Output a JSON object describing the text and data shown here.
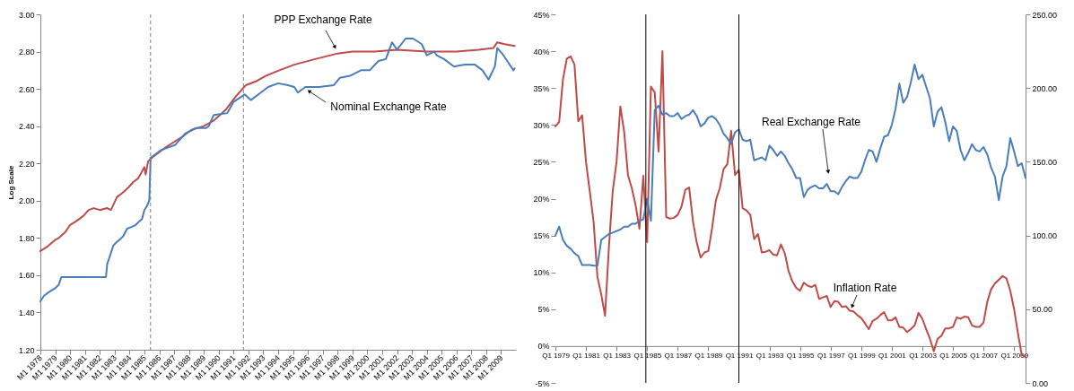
{
  "chart_data": [
    {
      "type": "line",
      "ylabel": "Log Scale",
      "xlim": [
        "1978-01",
        "2010-01"
      ],
      "xticks": [
        {
          "value": "1978-01",
          "label": "M1 1978"
        },
        {
          "value": "1979-01",
          "label": "M1 1979"
        },
        {
          "value": "1980-01",
          "label": "M1 1980"
        },
        {
          "value": "1981-01",
          "label": "M1 1981"
        },
        {
          "value": "1982-01",
          "label": "M1 1982"
        },
        {
          "value": "1983-01",
          "label": "M1 1983"
        },
        {
          "value": "1984-01",
          "label": "M1 1984"
        },
        {
          "value": "1985-01",
          "label": "M1 1985"
        },
        {
          "value": "1986-01",
          "label": "M1 1986"
        },
        {
          "value": "1987-01",
          "label": "M1 1987"
        },
        {
          "value": "1988-01",
          "label": "M1 1988"
        },
        {
          "value": "1989-01",
          "label": "M1 1989"
        },
        {
          "value": "1990-01",
          "label": "M1 1990"
        },
        {
          "value": "1991-01",
          "label": "M1 1991"
        },
        {
          "value": "1992-01",
          "label": "M1 1992"
        },
        {
          "value": "1993-01",
          "label": "M1 1993"
        },
        {
          "value": "1994-01",
          "label": "M1 1994"
        },
        {
          "value": "1995-01",
          "label": "M1 1995"
        },
        {
          "value": "1996-01",
          "label": "M1 1996"
        },
        {
          "value": "1997-01",
          "label": "M1 1997"
        },
        {
          "value": "1998-01",
          "label": "M1 1998"
        },
        {
          "value": "1999-01",
          "label": "M1 1999"
        },
        {
          "value": "2000-01",
          "label": "M1 2000"
        },
        {
          "value": "2001-01",
          "label": "M1 2001"
        },
        {
          "value": "2002-01",
          "label": "M1 2002"
        },
        {
          "value": "2003-01",
          "label": "M1 2003"
        },
        {
          "value": "2004-01",
          "label": "M1 2004"
        },
        {
          "value": "2005-01",
          "label": "M1 2005"
        },
        {
          "value": "2006-01",
          "label": "M1 2006"
        },
        {
          "value": "2007-01",
          "label": "M1 2007"
        },
        {
          "value": "2008-01",
          "label": "M1 2008"
        },
        {
          "value": "2009-01",
          "label": "M1 2009"
        }
      ],
      "ylim": [
        1.2,
        3.0
      ],
      "yticks": [
        {
          "value": 1.2,
          "label": "1.20"
        },
        {
          "value": 1.4,
          "label": "1.40"
        },
        {
          "value": 1.6,
          "label": "1.60"
        },
        {
          "value": 1.8,
          "label": "1.80"
        },
        {
          "value": 2.0,
          "label": "2.00"
        },
        {
          "value": 2.2,
          "label": "2.20"
        },
        {
          "value": 2.4,
          "label": "2.40"
        },
        {
          "value": 2.6,
          "label": "2.60"
        },
        {
          "value": 2.8,
          "label": "2.80"
        },
        {
          "value": 3.0,
          "label": "3.00"
        }
      ],
      "series": [
        {
          "name": "PPP Exchange Rate",
          "color": "#be4b48",
          "x": [
            "1978-01",
            "1978-06",
            "1979-01",
            "1979-04",
            "1979-09",
            "1980-01",
            "1980-06",
            "1980-12",
            "1981-04",
            "1981-08",
            "1982-01",
            "1982-07",
            "1982-10",
            "1983-03",
            "1983-07",
            "1983-12",
            "1984-04",
            "1984-08",
            "1985-01",
            "1985-02",
            "1985-04",
            "1985-07",
            "1986-07",
            "1987-07",
            "1988-03",
            "1989-01",
            "1989-09",
            "1990-07",
            "1991-03",
            "1991-11",
            "1992-07",
            "1993-03",
            "1994-02",
            "1995-02",
            "1996-07",
            "1998-01",
            "1999-01",
            "2000-07",
            "2002-01",
            "2004-01",
            "2006-01",
            "2007-07",
            "2008-07",
            "2008-10",
            "2009-04",
            "2009-12"
          ],
          "values": [
            1.73,
            1.75,
            1.79,
            1.8,
            1.83,
            1.87,
            1.89,
            1.92,
            1.95,
            1.96,
            1.95,
            1.96,
            1.95,
            2.02,
            2.04,
            2.07,
            2.1,
            2.12,
            2.18,
            2.14,
            2.21,
            2.23,
            2.29,
            2.34,
            2.38,
            2.4,
            2.43,
            2.49,
            2.56,
            2.62,
            2.64,
            2.67,
            2.7,
            2.73,
            2.76,
            2.79,
            2.8,
            2.8,
            2.81,
            2.8,
            2.8,
            2.81,
            2.82,
            2.85,
            2.84,
            2.83
          ]
        },
        {
          "name": "Nominal Exchange Rate",
          "color": "#4a7ebb",
          "x": [
            "1978-01",
            "1978-04",
            "1978-08",
            "1979-01",
            "1979-04",
            "1979-05",
            "1979-06",
            "1982-06",
            "1982-07",
            "1982-09",
            "1982-12",
            "1983-03",
            "1983-05",
            "1983-08",
            "1983-11",
            "1984-03",
            "1984-06",
            "1984-09",
            "1984-11",
            "1985-01",
            "1985-03",
            "1985-05",
            "1985-06",
            "1986-02",
            "1987-02",
            "1987-10",
            "1988-07",
            "1989-03",
            "1989-05",
            "1989-09",
            "1990-08",
            "1991-01",
            "1991-10",
            "1992-03",
            "1992-11",
            "1993-05",
            "1994-01",
            "1994-09",
            "1995-02",
            "1995-05",
            "1995-11",
            "1996-10",
            "1997-10",
            "1998-03",
            "1998-11",
            "1999-08",
            "2000-03",
            "2000-10",
            "2001-04",
            "2001-09",
            "2002-01",
            "2002-08",
            "2003-02",
            "2003-09",
            "2004-01",
            "2004-07",
            "2004-09",
            "2005-03",
            "2005-11",
            "2006-08",
            "2007-04",
            "2007-10",
            "2008-03",
            "2008-08",
            "2008-10",
            "2009-03",
            "2009-07",
            "2009-11",
            "2009-12"
          ],
          "values": [
            1.46,
            1.49,
            1.51,
            1.53,
            1.55,
            1.57,
            1.59,
            1.59,
            1.66,
            1.7,
            1.76,
            1.78,
            1.79,
            1.81,
            1.85,
            1.86,
            1.87,
            1.89,
            1.9,
            1.95,
            1.97,
            2.0,
            2.23,
            2.27,
            2.3,
            2.36,
            2.39,
            2.39,
            2.4,
            2.46,
            2.47,
            2.53,
            2.57,
            2.54,
            2.58,
            2.61,
            2.63,
            2.62,
            2.61,
            2.58,
            2.61,
            2.61,
            2.62,
            2.66,
            2.67,
            2.7,
            2.7,
            2.75,
            2.76,
            2.85,
            2.81,
            2.87,
            2.87,
            2.84,
            2.78,
            2.8,
            2.78,
            2.76,
            2.72,
            2.73,
            2.73,
            2.7,
            2.65,
            2.72,
            2.82,
            2.78,
            2.74,
            2.7,
            2.71
          ]
        }
      ],
      "ref_lines": [
        {
          "axis": "x",
          "value": "1985-06",
          "color": "#808080",
          "line_style": "dashed"
        },
        {
          "axis": "x",
          "value": "1991-09",
          "color": "#808080",
          "line_style": "dashed"
        }
      ]
    },
    {
      "type": "line",
      "xlim": [
        "1979-01",
        "2009-10"
      ],
      "xticks": [
        {
          "value": "1979-01",
          "label": "Q1 1979"
        },
        {
          "value": "1981-01",
          "label": "Q1 1981"
        },
        {
          "value": "1983-01",
          "label": "Q1 1983"
        },
        {
          "value": "1985-01",
          "label": "Q1 1985"
        },
        {
          "value": "1987-01",
          "label": "Q1 1987"
        },
        {
          "value": "1989-01",
          "label": "Q1 1989"
        },
        {
          "value": "1991-01",
          "label": "Q1 1991"
        },
        {
          "value": "1993-01",
          "label": "Q1 1993"
        },
        {
          "value": "1995-01",
          "label": "Q1 1995"
        },
        {
          "value": "1997-01",
          "label": "Q1 1997"
        },
        {
          "value": "1999-01",
          "label": "Q1 1999"
        },
        {
          "value": "2001-01",
          "label": "Q1 2001"
        },
        {
          "value": "2003-01",
          "label": "Q1 2003"
        },
        {
          "value": "2005-01",
          "label": "Q1 2005"
        },
        {
          "value": "2007-01",
          "label": "Q1 2007"
        },
        {
          "value": "2009-01",
          "label": "Q1 2009"
        }
      ],
      "ylim": [
        -5,
        45
      ],
      "yticks": [
        {
          "value": -5,
          "label": "-5%"
        },
        {
          "value": 0,
          "label": "0%"
        },
        {
          "value": 5,
          "label": "5%"
        },
        {
          "value": 10,
          "label": "10%"
        },
        {
          "value": 15,
          "label": "15%"
        },
        {
          "value": 20,
          "label": "20%"
        },
        {
          "value": 25,
          "label": "25%"
        },
        {
          "value": 30,
          "label": "30%"
        },
        {
          "value": 35,
          "label": "35%"
        },
        {
          "value": 40,
          "label": "40%"
        },
        {
          "value": 45,
          "label": "45%"
        }
      ],
      "y2lim": [
        0,
        250
      ],
      "y2ticks": [
        {
          "value": 0,
          "label": "0.00"
        },
        {
          "value": 50,
          "label": "50.00"
        },
        {
          "value": 100,
          "label": "100.00"
        },
        {
          "value": 150,
          "label": "150.00"
        },
        {
          "value": 200,
          "label": "200.00"
        },
        {
          "value": 250,
          "label": "250.00"
        }
      ],
      "x": [
        "1979-01",
        "1979-04",
        "1979-07",
        "1979-10",
        "1980-01",
        "1980-04",
        "1980-07",
        "1980-10",
        "1981-01",
        "1981-04",
        "1981-07",
        "1981-10",
        "1982-01",
        "1982-04",
        "1982-07",
        "1982-10",
        "1983-01",
        "1983-04",
        "1983-07",
        "1983-10",
        "1984-01",
        "1984-04",
        "1984-07",
        "1984-10",
        "1985-01",
        "1985-04",
        "1985-07",
        "1985-10",
        "1986-01",
        "1986-04",
        "1986-07",
        "1986-10",
        "1987-01",
        "1987-04",
        "1987-07",
        "1987-10",
        "1988-01",
        "1988-04",
        "1988-07",
        "1988-10",
        "1989-01",
        "1989-04",
        "1989-07",
        "1989-10",
        "1990-01",
        "1990-04",
        "1990-07",
        "1990-10",
        "1991-01",
        "1991-04",
        "1991-07",
        "1991-10",
        "1992-01",
        "1992-04",
        "1992-07",
        "1992-10",
        "1993-01",
        "1993-04",
        "1993-07",
        "1993-10",
        "1994-01",
        "1994-04",
        "1994-07",
        "1994-10",
        "1995-01",
        "1995-04",
        "1995-07",
        "1995-10",
        "1996-01",
        "1996-04",
        "1996-07",
        "1996-10",
        "1997-01",
        "1997-04",
        "1997-07",
        "1997-10",
        "1998-01",
        "1998-04",
        "1998-07",
        "1998-10",
        "1999-01",
        "1999-04",
        "1999-07",
        "1999-10",
        "2000-01",
        "2000-04",
        "2000-07",
        "2000-10",
        "2001-01",
        "2001-04",
        "2001-07",
        "2001-10",
        "2002-01",
        "2002-04",
        "2002-07",
        "2002-10",
        "2003-01",
        "2003-04",
        "2003-07",
        "2003-10",
        "2004-01",
        "2004-04",
        "2004-07",
        "2004-10",
        "2005-01",
        "2005-04",
        "2005-07",
        "2005-10",
        "2006-01",
        "2006-04",
        "2006-07",
        "2006-10",
        "2007-01",
        "2007-04",
        "2007-07",
        "2007-10",
        "2008-01",
        "2008-04",
        "2008-07",
        "2008-10",
        "2009-01",
        "2009-04",
        "2009-07",
        "2009-10"
      ],
      "series": [
        {
          "name": "Real Exchange Rate",
          "color": "#4a7ebb",
          "axis": "y2",
          "values": [
            100,
            106,
            97,
            93,
            91,
            88,
            86,
            80,
            80,
            80,
            79.5,
            79.5,
            97,
            99,
            101,
            102,
            103,
            104,
            106,
            106,
            108,
            108,
            110,
            111,
            125,
            110,
            185,
            188,
            182,
            183,
            181,
            181,
            183,
            179,
            181,
            182,
            185,
            181,
            174,
            176,
            180,
            181,
            179,
            175,
            169,
            166,
            162,
            170,
            172,
            165,
            164,
            165,
            151,
            152,
            153,
            151,
            161,
            158,
            154,
            157,
            154,
            149,
            145,
            139,
            139,
            126,
            131,
            133,
            134,
            132,
            132,
            135,
            130,
            130,
            128,
            133,
            137,
            140,
            139,
            139,
            143,
            151,
            158,
            157,
            150,
            159,
            167,
            168,
            175,
            186,
            203,
            190,
            194,
            204,
            216,
            206,
            209,
            201,
            193,
            174,
            184,
            187,
            177,
            164,
            174,
            171,
            158,
            151,
            156,
            162,
            158,
            157,
            160,
            155,
            146,
            140,
            124,
            140,
            147,
            166,
            157,
            147,
            149,
            139
          ]
        },
        {
          "name": "Inflation Rate",
          "color": "#be4b48",
          "values": [
            29.8,
            30.4,
            36.2,
            39.0,
            39.3,
            38.2,
            30.5,
            31.3,
            25.0,
            21.0,
            16.9,
            9.4,
            7.0,
            4.1,
            13.3,
            21.0,
            25.0,
            32.5,
            29.1,
            23.2,
            21.4,
            19.1,
            15.9,
            23.1,
            14.1,
            35.2,
            34.4,
            26.4,
            40.0,
            17.5,
            17.3,
            17.4,
            17.8,
            18.9,
            21.2,
            21.5,
            16.9,
            14.0,
            12.0,
            12.7,
            12.9,
            16.0,
            19.8,
            21.4,
            24.0,
            24.7,
            29.2,
            23.2,
            23.9,
            18.7,
            18.4,
            17.8,
            14.5,
            15.2,
            12.7,
            12.8,
            13.0,
            12.4,
            12.3,
            13.8,
            12.6,
            10.2,
            8.8,
            7.9,
            7.5,
            8.6,
            8.2,
            8.0,
            8.3,
            6.4,
            6.6,
            6.8,
            5.3,
            6.1,
            6.0,
            5.3,
            5.4,
            4.8,
            4.7,
            4.2,
            3.8,
            3.1,
            2.3,
            3.4,
            3.7,
            4.2,
            4.6,
            3.5,
            3.5,
            3.9,
            2.6,
            2.5,
            1.9,
            2.3,
            2.8,
            4.5,
            3.7,
            2.3,
            1.0,
            -0.7,
            1.0,
            1.4,
            2.4,
            2.4,
            2.6,
            3.9,
            3.7,
            4.0,
            3.9,
            2.8,
            2.6,
            2.6,
            3.2,
            6.0,
            7.7,
            8.5,
            9.0,
            9.5,
            9.2,
            7.5,
            5.0,
            1.8,
            -1.2,
            -1.5
          ]
        }
      ],
      "ref_lines": [
        {
          "axis": "x",
          "value": "1984-12",
          "color": "#000000",
          "line_style": "solid"
        },
        {
          "axis": "x",
          "value": "1991-01",
          "color": "#000000",
          "line_style": "solid"
        }
      ]
    }
  ]
}
